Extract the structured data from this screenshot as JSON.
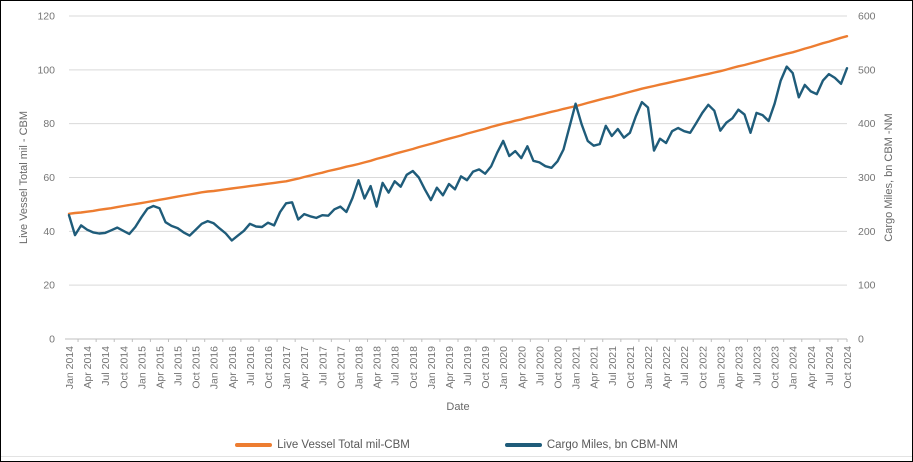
{
  "chart_data": {
    "type": "line",
    "title": "",
    "xlabel": "Date",
    "x_interval": "monthly",
    "x_range": [
      "Jan 2014",
      "Oct 2024"
    ],
    "x_tick_labels": [
      "Jan 2014",
      "Apr 2014",
      "Jul 2014",
      "Oct 2014",
      "Jan 2015",
      "Apr 2015",
      "Jul 2015",
      "Oct 2015",
      "Jan 2016",
      "Apr 2016",
      "Jul 2016",
      "Oct 2016",
      "Jan 2017",
      "Apr 2017",
      "Jul 2017",
      "Oct 2017",
      "Jan 2018",
      "Apr 2018",
      "Jul 2018",
      "Oct 2018",
      "Jan 2019",
      "Apr 2019",
      "Jul 2019",
      "Oct 2019",
      "Jan 2020",
      "Apr 2020",
      "Jul 2020",
      "Oct 2020",
      "Jan 2021",
      "Apr 2021",
      "Jul 2021",
      "Oct 2021",
      "Jan 2022",
      "Apr 2022",
      "Jul 2022",
      "Oct 2022",
      "Jan 2023",
      "Apr 2023",
      "Jul 2023",
      "Oct 2023",
      "Jan 2024",
      "Apr 2024",
      "Jul 2024",
      "Oct 2024"
    ],
    "left_axis": {
      "label": "Live Vessel Total mil  - CBM",
      "min": 0,
      "max": 120,
      "step": 20,
      "ticks": [
        "0",
        "20",
        "40",
        "60",
        "80",
        "100",
        "120"
      ]
    },
    "right_axis": {
      "label": "Cargo Miles, bn CBM  -NM",
      "min": 0,
      "max": 600,
      "step": 100,
      "ticks": [
        "0",
        "100",
        "200",
        "300",
        "400",
        "500",
        "600"
      ]
    },
    "grid": true,
    "legend_position": "bottom",
    "series": [
      {
        "name": "Live Vessel Total  mil-CBM",
        "axis": "left",
        "color": "#ED7D31",
        "values": [
          46.5,
          46.8,
          47.0,
          47.3,
          47.6,
          48.0,
          48.3,
          48.6,
          49.0,
          49.4,
          49.8,
          50.1,
          50.5,
          50.9,
          51.3,
          51.7,
          52.1,
          52.5,
          52.9,
          53.3,
          53.7,
          54.1,
          54.5,
          54.8,
          55.0,
          55.3,
          55.6,
          55.9,
          56.2,
          56.5,
          56.8,
          57.1,
          57.4,
          57.7,
          58.0,
          58.3,
          58.6,
          59.1,
          59.6,
          60.2,
          60.7,
          61.3,
          61.8,
          62.4,
          62.9,
          63.4,
          64.0,
          64.5,
          65.0,
          65.6,
          66.2,
          66.9,
          67.5,
          68.1,
          68.8,
          69.4,
          70.0,
          70.6,
          71.3,
          71.9,
          72.5,
          73.1,
          73.8,
          74.4,
          75.0,
          75.6,
          76.3,
          76.9,
          77.5,
          78.1,
          78.8,
          79.4,
          80.0,
          80.5,
          81.1,
          81.6,
          82.2,
          82.7,
          83.3,
          83.8,
          84.4,
          84.9,
          85.5,
          86.0,
          86.5,
          87.1,
          87.7,
          88.3,
          88.9,
          89.5,
          90.0,
          90.6,
          91.2,
          91.8,
          92.4,
          93.0,
          93.5,
          94.0,
          94.5,
          95.0,
          95.5,
          96.0,
          96.5,
          97.0,
          97.5,
          98.0,
          98.5,
          99.0,
          99.5,
          100.1,
          100.7,
          101.3,
          101.8,
          102.4,
          103.0,
          103.6,
          104.2,
          104.8,
          105.4,
          106.0,
          106.5,
          107.2,
          107.9,
          108.5,
          109.2,
          109.9,
          110.5,
          111.2,
          111.9,
          112.5
        ]
      },
      {
        "name": "Cargo Miles, bn CBM-NM",
        "axis": "right",
        "color": "#1F5C7A",
        "values": [
          230,
          193,
          211,
          203,
          198,
          196,
          197,
          202,
          207,
          201,
          195,
          208,
          226,
          242,
          247,
          243,
          217,
          210,
          206,
          198,
          192,
          203,
          214,
          219,
          215,
          205,
          196,
          183,
          192,
          201,
          214,
          209,
          208,
          216,
          211,
          236,
          252,
          254,
          222,
          232,
          228,
          225,
          230,
          229,
          241,
          246,
          236,
          262,
          295,
          261,
          284,
          246,
          290,
          272,
          293,
          283,
          305,
          312,
          300,
          278,
          258,
          281,
          267,
          288,
          278,
          302,
          295,
          311,
          315,
          307,
          321,
          346,
          368,
          340,
          349,
          336,
          358,
          331,
          328,
          321,
          318,
          330,
          352,
          395,
          437,
          399,
          368,
          359,
          362,
          396,
          377,
          390,
          374,
          383,
          414,
          440,
          430,
          350,
          372,
          364,
          386,
          392,
          386,
          383,
          401,
          420,
          435,
          424,
          387,
          402,
          410,
          426,
          417,
          383,
          420,
          416,
          405,
          437,
          480,
          506,
          494,
          449,
          472,
          460,
          455,
          480,
          492,
          485,
          474,
          503
        ]
      }
    ],
    "colors": {
      "gridline": "#D9D9D9",
      "axis_line": "#BFBFBF",
      "tick_text": "#757575",
      "axis_title_text": "#696969",
      "legend_text": "#595959"
    }
  }
}
